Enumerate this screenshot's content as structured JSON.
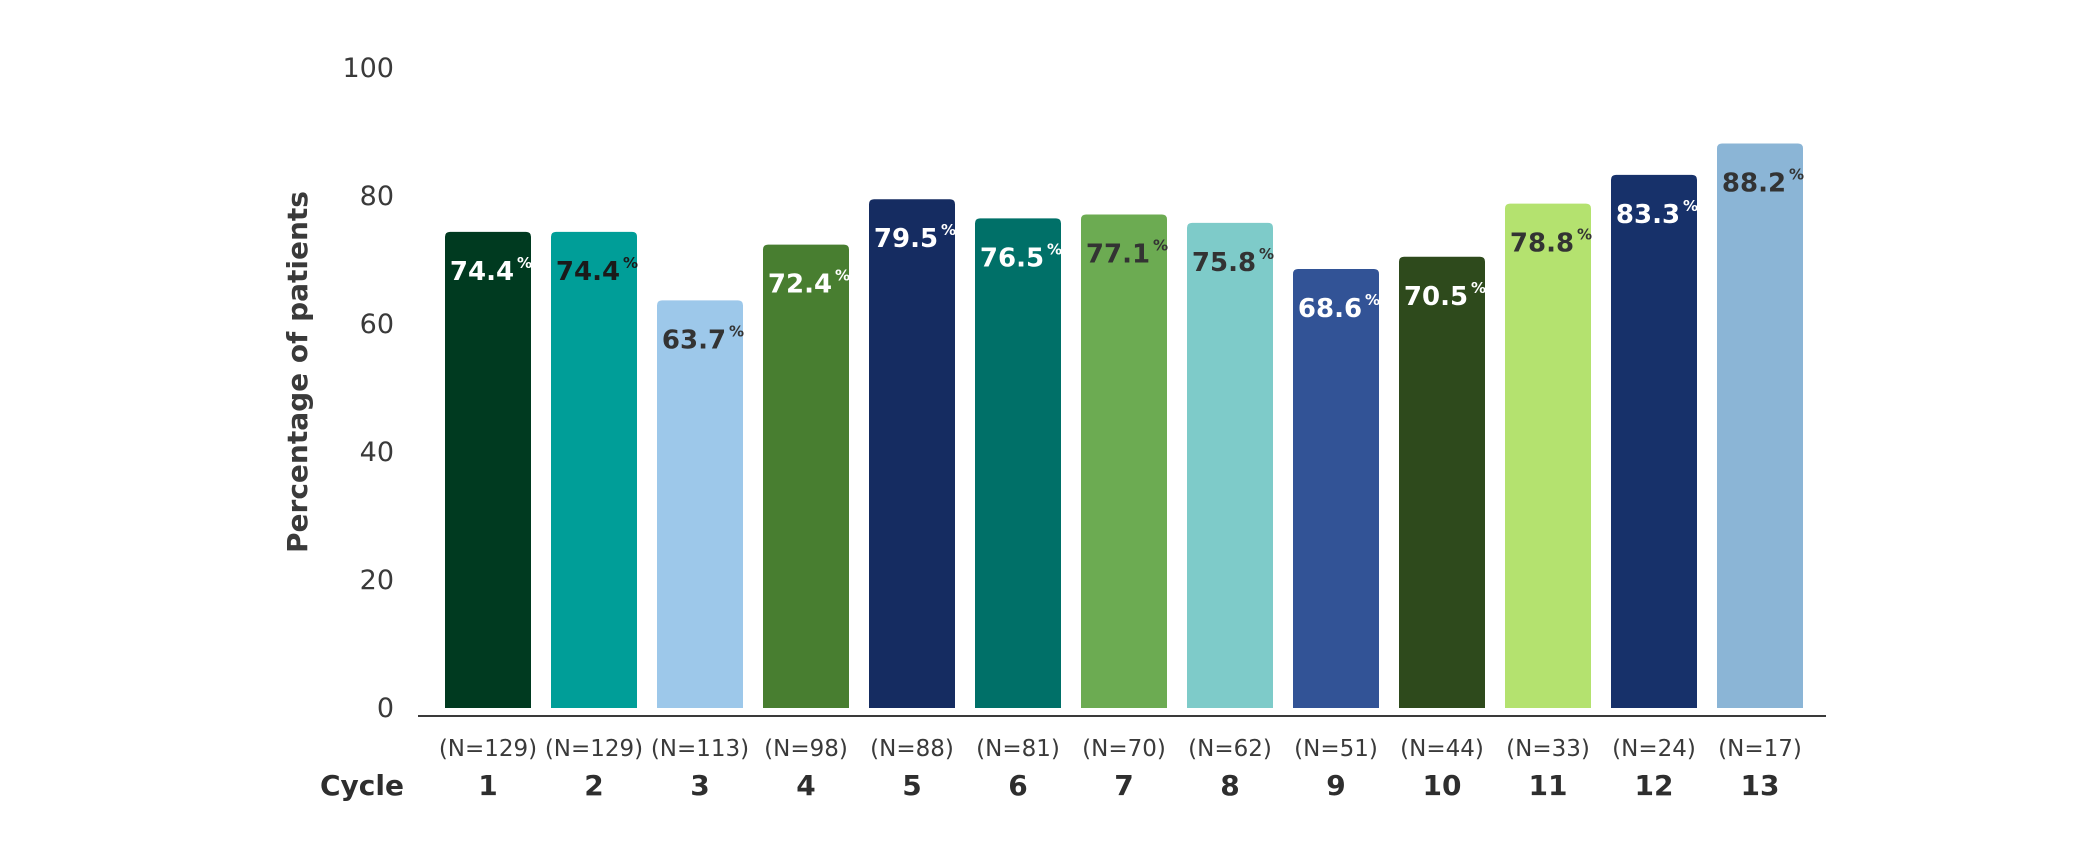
{
  "chart_data": {
    "type": "bar",
    "ylabel": "Percentage of patients",
    "xlabel": "Cycle",
    "ylim": [
      0,
      100
    ],
    "yticks": [
      0,
      20,
      40,
      60,
      80,
      100
    ],
    "grid": false,
    "categories": [
      "1",
      "2",
      "3",
      "4",
      "5",
      "6",
      "7",
      "8",
      "9",
      "10",
      "11",
      "12",
      "13"
    ],
    "n_labels": [
      "(N=129)",
      "(N=129)",
      "(N=113)",
      "(N=98)",
      "(N=88)",
      "(N=81)",
      "(N=70)",
      "(N=62)",
      "(N=51)",
      "(N=44)",
      "(N=33)",
      "(N=24)",
      "(N=17)"
    ],
    "values": [
      74.4,
      74.4,
      63.7,
      72.4,
      79.5,
      76.5,
      77.1,
      75.8,
      68.6,
      70.5,
      78.8,
      83.3,
      88.2
    ],
    "value_labels": [
      "74.4",
      "74.4",
      "63.7",
      "72.4",
      "79.5",
      "76.5",
      "77.1",
      "75.8",
      "68.6",
      "70.5",
      "78.8",
      "83.3",
      "88.2"
    ],
    "percent_sign": "%",
    "bar_colors": [
      "#003a20",
      "#009e98",
      "#9dc8ea",
      "#487e30",
      "#152c61",
      "#007068",
      "#6cab52",
      "#7ecbc9",
      "#325396",
      "#2e4a1c",
      "#b4e26f",
      "#17316a",
      "#8bb5d6"
    ],
    "label_colors": [
      "#ffffff",
      "#1a1a1a",
      "#333333",
      "#ffffff",
      "#ffffff",
      "#ffffff",
      "#333333",
      "#333333",
      "#ffffff",
      "#ffffff",
      "#333333",
      "#ffffff",
      "#333333"
    ]
  }
}
